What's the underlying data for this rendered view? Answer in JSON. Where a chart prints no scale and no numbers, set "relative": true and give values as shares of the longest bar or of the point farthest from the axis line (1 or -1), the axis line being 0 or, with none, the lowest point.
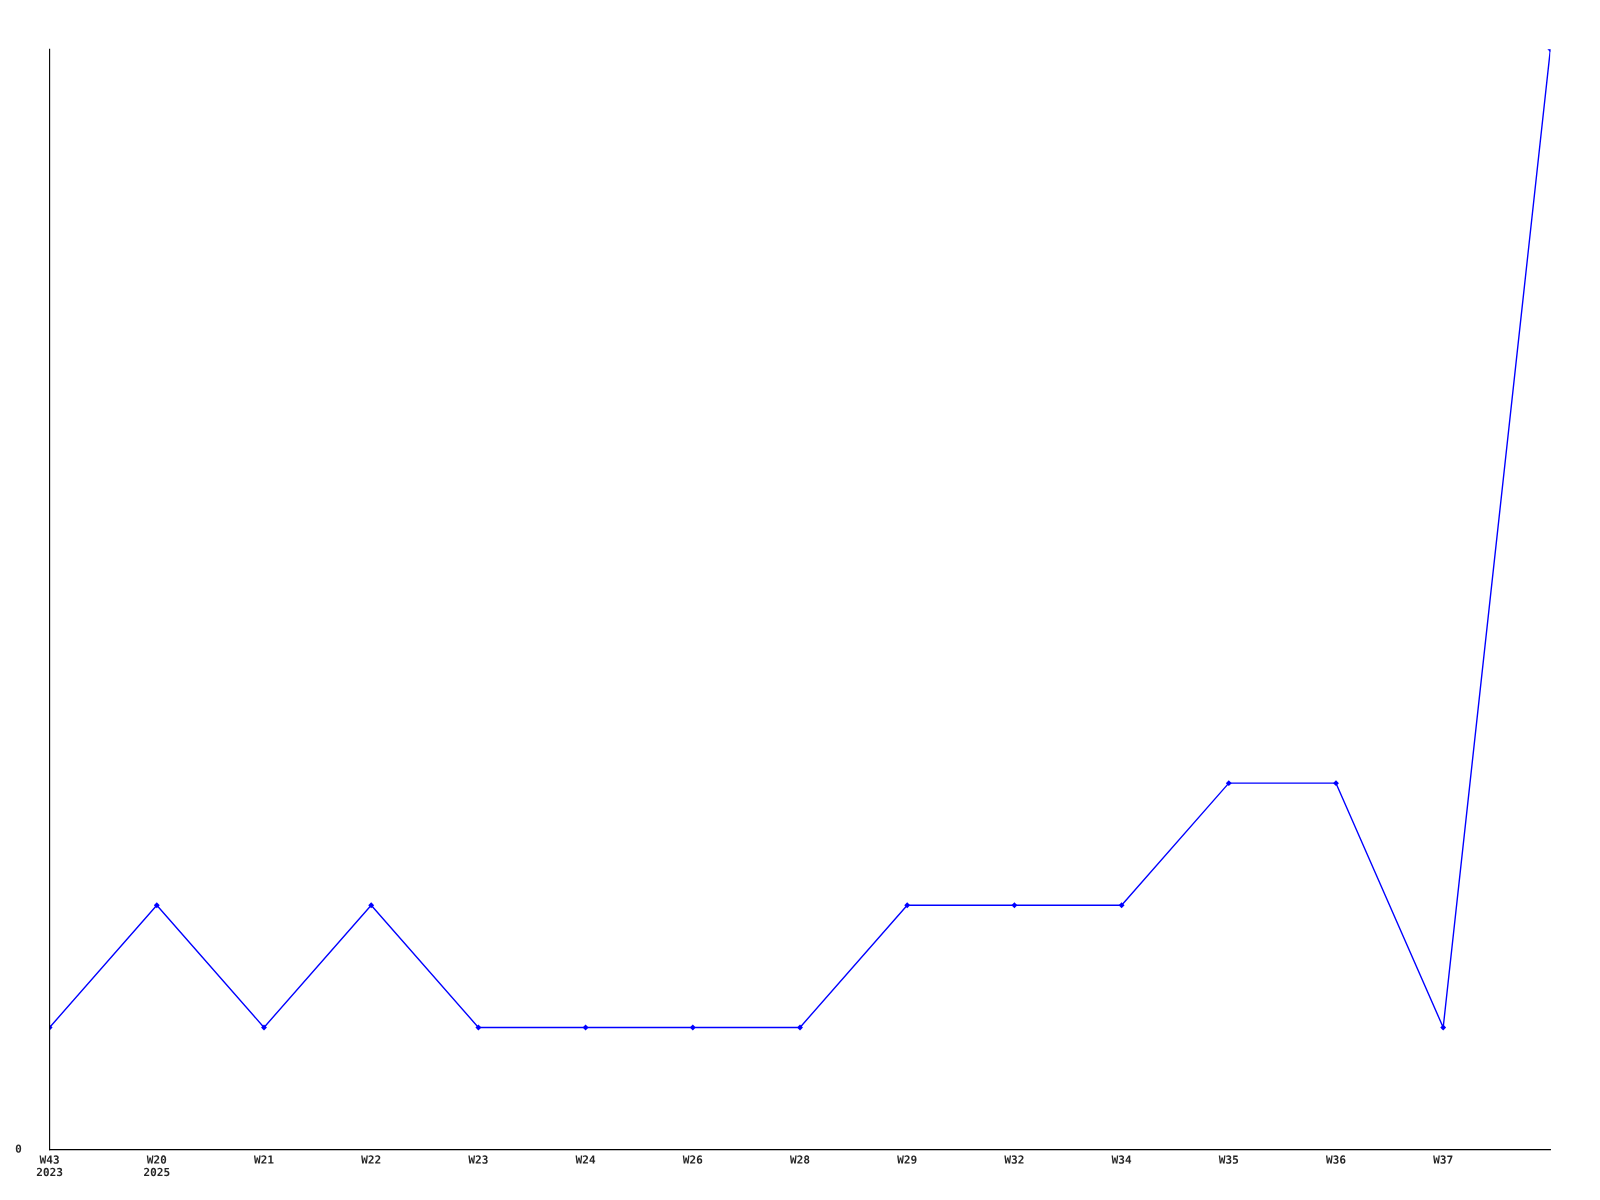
{
  "chart_data": {
    "type": "line",
    "relative": true,
    "categories": [
      "W43\n2023",
      "W20\n2025",
      "W21",
      "W22",
      "W23",
      "W24",
      "W26",
      "W28",
      "W29",
      "W32",
      "W34",
      "W35",
      "W36",
      "W37",
      null
    ],
    "series": [
      {
        "color": "#0000ff",
        "values": [
          0.111,
          0.222,
          0.111,
          0.222,
          0.111,
          0.111,
          0.111,
          0.111,
          0.222,
          0.222,
          0.222,
          0.333,
          0.333,
          0.111,
          1
        ]
      }
    ],
    "annotations": [
      "0"
    ],
    "marker": "diamond",
    "line_style": "solid",
    "grid": false,
    "legend": false
  }
}
